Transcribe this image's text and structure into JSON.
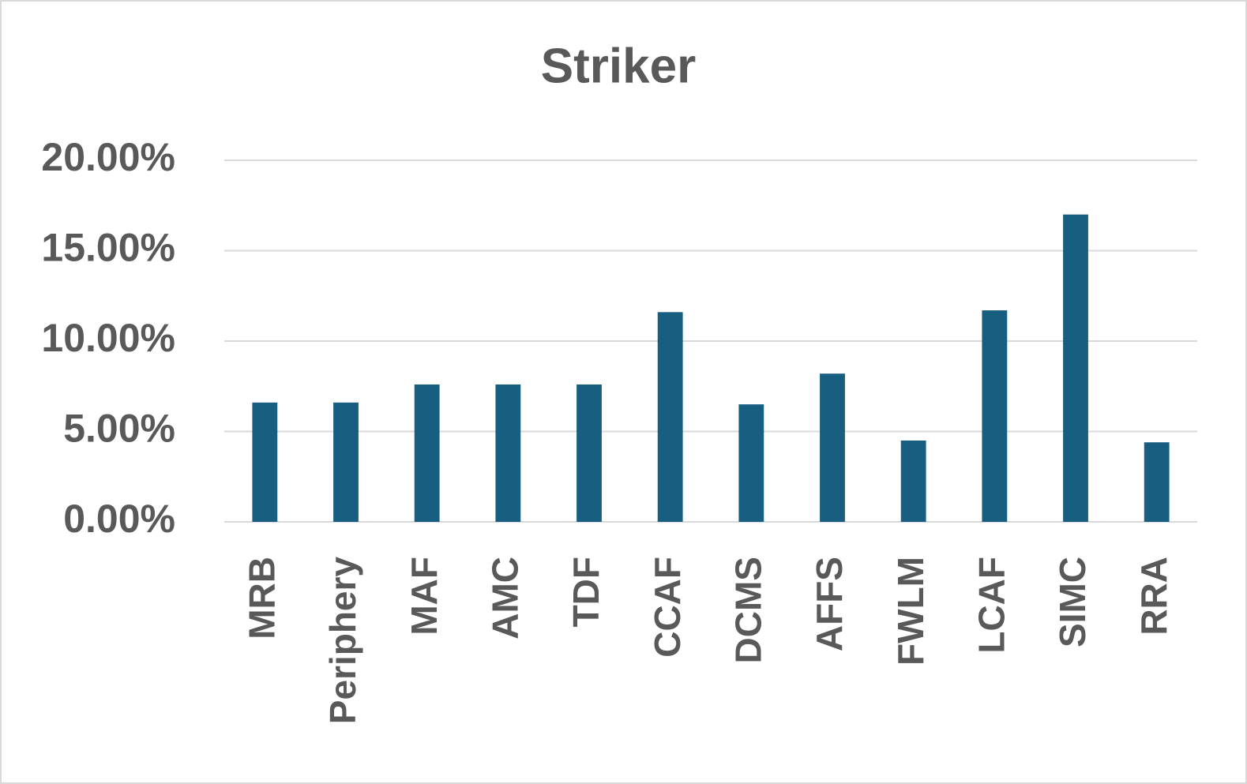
{
  "chart_data": {
    "type": "bar",
    "title": "Striker",
    "categories": [
      "MRB",
      "Periphery",
      "MAF",
      "AMC",
      "TDF",
      "CCAF",
      "DCMS",
      "AFFS",
      "FWLM",
      "LCAF",
      "SIMC",
      "RRA"
    ],
    "values": [
      6.6,
      6.6,
      7.6,
      7.6,
      7.6,
      11.6,
      6.5,
      8.2,
      4.5,
      11.7,
      17.0,
      4.4
    ],
    "color": "#175e81",
    "ylim": [
      0,
      20
    ],
    "yticks": [
      {
        "value": 0,
        "label": "0.00%"
      },
      {
        "value": 5,
        "label": "5.00%"
      },
      {
        "value": 10,
        "label": "10.00%"
      },
      {
        "value": 15,
        "label": "15.00%"
      },
      {
        "value": 20,
        "label": "20.00%"
      }
    ],
    "grid": true
  }
}
